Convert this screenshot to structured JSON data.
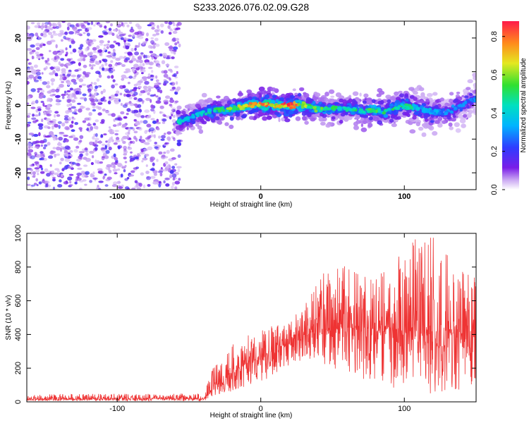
{
  "chart_data": [
    {
      "type": "heatmap",
      "title": "S233.2026.076.02.09.G28",
      "xlabel": "Height of straight line (km)",
      "ylabel": "Frequency (Hz)",
      "xlim": [
        -163,
        150
      ],
      "ylim": [
        -25,
        25
      ],
      "x_ticks": [
        -100,
        0,
        100
      ],
      "x_tick_labels": [
        "-100",
        "0",
        "100"
      ],
      "y_ticks": [
        20,
        10,
        0,
        -10,
        -20
      ],
      "y_tick_labels": [
        "20",
        "10",
        "0",
        "-10",
        "-20"
      ],
      "colorbar": {
        "label": "Normalized spectral amplitude",
        "range": [
          0,
          0.88
        ],
        "ticks": [
          0,
          0.2,
          0.4,
          0.6,
          0.8
        ],
        "tick_labels": [
          "0.0",
          "0.2",
          "0.4",
          "0.6",
          "0.8"
        ]
      },
      "ridge": {
        "x": [
          -58,
          -50,
          -40,
          -30,
          -20,
          -10,
          0,
          10,
          20,
          30,
          40,
          50,
          60,
          70,
          80,
          90,
          100,
          110,
          120,
          130,
          140,
          148
        ],
        "frequency": [
          -5,
          -4,
          -2,
          -1.5,
          -1,
          0,
          0.5,
          0,
          0,
          0,
          -1,
          -1,
          -1,
          -1.5,
          -1.5,
          -1.5,
          0,
          -1,
          -2,
          -2,
          0,
          2
        ],
        "peak_amplitude": [
          0.45,
          0.4,
          0.45,
          0.5,
          0.6,
          0.7,
          0.85,
          0.75,
          0.88,
          0.6,
          0.55,
          0.5,
          0.45,
          0.55,
          0.6,
          0.5,
          0.5,
          0.4,
          0.35,
          0.3,
          0.3,
          0.3
        ]
      },
      "noise_region_x": [
        -163,
        -58
      ]
    },
    {
      "type": "line",
      "xlabel": "Height of straight line (km)",
      "ylabel": "SNR (10 * v/v)",
      "xlim": [
        -163,
        150
      ],
      "ylim": [
        0,
        1000
      ],
      "x_ticks": [
        -100,
        0,
        100
      ],
      "x_tick_labels": [
        "-100",
        "0",
        "100"
      ],
      "y_ticks": [
        0,
        200,
        400,
        600,
        800,
        1000
      ],
      "y_tick_labels": [
        "0",
        "200",
        "400",
        "600",
        "800",
        "1000"
      ],
      "color": "#ee3333",
      "envelope": {
        "x": [
          -163,
          -40,
          -35,
          -20,
          0,
          20,
          30,
          50,
          70,
          90,
          110,
          130,
          150
        ],
        "mean": [
          15,
          20,
          60,
          180,
          270,
          350,
          420,
          440,
          440,
          430,
          440,
          420,
          420
        ],
        "max": [
          45,
          50,
          180,
          350,
          430,
          480,
          600,
          850,
          780,
          800,
          1000,
          960,
          750
        ],
        "min": [
          5,
          5,
          20,
          60,
          120,
          200,
          250,
          200,
          120,
          80,
          40,
          60,
          80
        ]
      }
    }
  ]
}
